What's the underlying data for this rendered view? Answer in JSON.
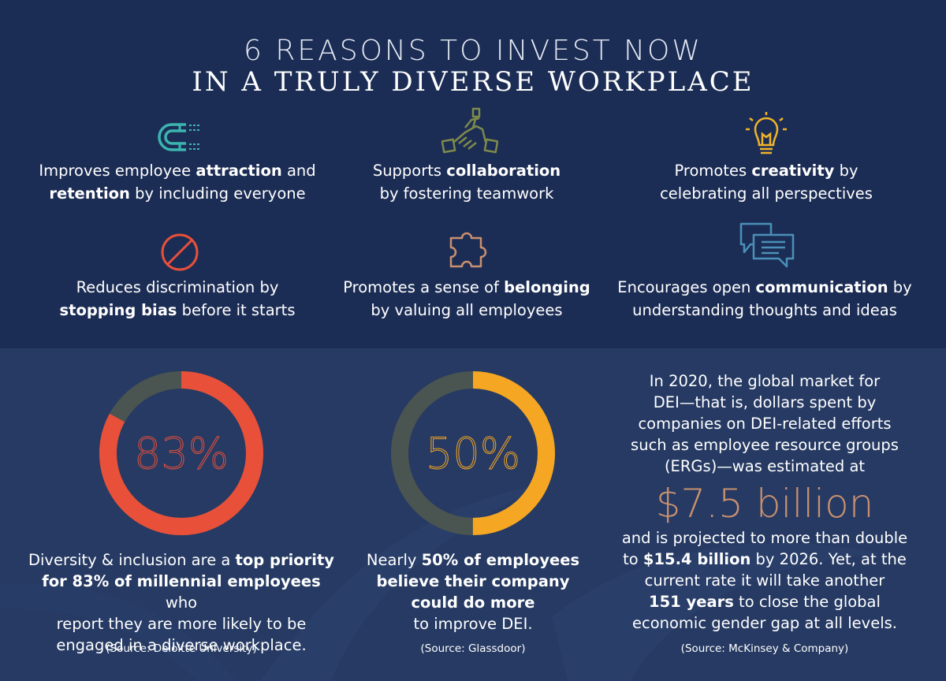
{
  "title": {
    "line1": "6 REASONS TO INVEST NOW",
    "line2": "IN A TRULY DIVERSE WORKPLACE"
  },
  "reasons": [
    {
      "icon": "magnet-icon",
      "pre": "Improves employee ",
      "bold1": "attraction",
      "mid": " and",
      "bold2": "retention",
      "post": " by including everyone"
    },
    {
      "icon": "handshake-icon",
      "pre": "Supports ",
      "bold1": "collaboration",
      "mid": "",
      "bold2": "",
      "post": "by fostering teamwork"
    },
    {
      "icon": "lightbulb-icon",
      "pre": "Promotes ",
      "bold1": "creativity",
      "mid": " by",
      "bold2": "",
      "post": "celebrating all perspectives"
    },
    {
      "icon": "no-sign-icon",
      "pre": "Reduces discrimination by",
      "bold1": "",
      "mid": "",
      "bold2": "stopping bias",
      "post": " before it starts"
    },
    {
      "icon": "puzzle-icon",
      "pre": "Promotes a sense of ",
      "bold1": "belonging",
      "mid": "",
      "bold2": "",
      "post": "by valuing all employees"
    },
    {
      "icon": "speech-bubbles-icon",
      "pre": "Encourages open ",
      "bold1": "communication",
      "mid": " by",
      "bold2": "",
      "post": "understanding thoughts and ideas"
    }
  ],
  "stats": [
    {
      "value_text": "83%",
      "percent": 83,
      "color": "#e8503a",
      "line1_pre": "Diversity & inclusion are a ",
      "line1_bold": "top priority",
      "line2_bold": "for 83% of millennial employees",
      "line2_post": " who",
      "line3": "report they are more likely to be",
      "line4": "engaged in a diverse workplace.",
      "source": "(Source: Deloitte University)"
    },
    {
      "value_text": "50%",
      "percent": 50,
      "color": "#f5a623",
      "line1_pre": "Nearly ",
      "line1_bold": "50% of employees",
      "line2_bold": "believe their company",
      "line3_bold": "could do more",
      "line4": "to improve DEI.",
      "source": "(Source: Glassdoor)"
    }
  ],
  "market": {
    "lines_top": [
      "In 2020, the global market for",
      "DEI—that is, dollars spent by",
      "companies on DEI-related efforts",
      "such as employee resource groups",
      "(ERGs)—was estimated at"
    ],
    "big_value": "$7.5 billion",
    "line_a": "and is projected to more than double",
    "line_b_pre": "to ",
    "line_b_bold": "$15.4 billion",
    "line_b_post": " by 2026. Yet, at the",
    "line_c": "current rate it will take another",
    "line_d_bold": "151 years",
    "line_d_post": " to close the global",
    "line_e": "economic gender gap at all levels.",
    "source": "(Source: McKinsey & Company)"
  },
  "colors": {
    "top_bg": "#1c2d55",
    "bottom_bg": "#263a63",
    "ring_track": "#4a5450",
    "accent_red": "#e8503a",
    "accent_orange": "#f5a623",
    "accent_copper": "#c8906e",
    "icon_teal": "#3bb5b0",
    "icon_olive": "#7d8a4a",
    "icon_gold": "#f0b429",
    "icon_tan": "#c8906e",
    "icon_blue": "#4a90b8"
  }
}
